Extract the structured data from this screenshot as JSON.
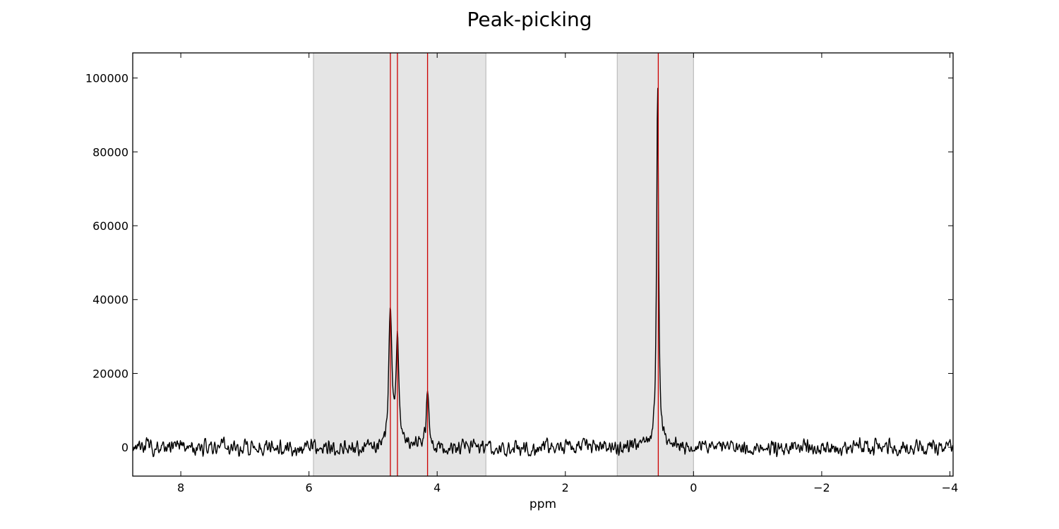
{
  "chart_data": {
    "type": "line",
    "title": "Peak-picking",
    "xlabel": "ppm",
    "ylabel": "",
    "xlim": [
      8.75,
      -4.05
    ],
    "ylim": [
      -7800,
      106800
    ],
    "x_ticks": [
      8,
      6,
      4,
      2,
      0,
      -2,
      -4
    ],
    "x_tick_labels": [
      "8",
      "6",
      "4",
      "2",
      "0",
      "−2",
      "−4"
    ],
    "y_ticks": [
      0,
      20000,
      40000,
      60000,
      80000,
      100000
    ],
    "y_tick_labels": [
      "0",
      "20000",
      "40000",
      "60000",
      "80000",
      "100000"
    ],
    "grid": false,
    "legend": "none",
    "regions": [
      {
        "x_start": 5.93,
        "x_end": 3.24
      },
      {
        "x_start": 1.19,
        "x_end": 0.0
      }
    ],
    "peak_lines": [
      4.73,
      4.62,
      4.15,
      0.55
    ],
    "series": [
      {
        "peaks": [
          {
            "x": 4.73,
            "height": 36500,
            "width": 0.028
          },
          {
            "x": 4.62,
            "height": 28500,
            "width": 0.028
          },
          {
            "x": 4.15,
            "height": 15800,
            "width": 0.022
          },
          {
            "x": 0.56,
            "height": 100000,
            "width": 0.018
          }
        ],
        "noise_amplitude": 1300,
        "x_start": 8.75,
        "x_end": -4.05
      }
    ],
    "colors": {
      "line": "#000000",
      "peak_line": "#cc0000",
      "region_fill": "#e5e5e5",
      "region_edge": "#bdbdbd"
    }
  }
}
